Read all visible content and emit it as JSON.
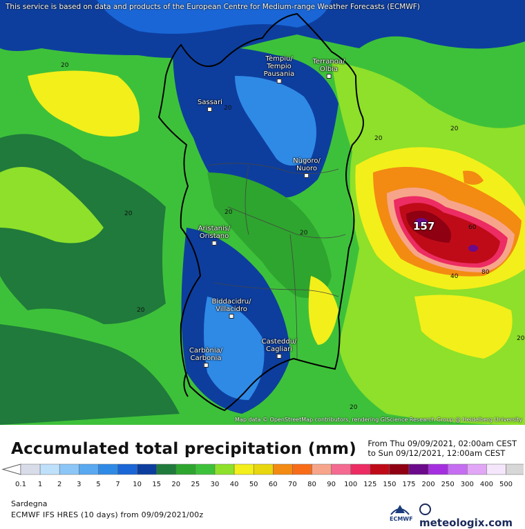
{
  "notice": "This service is based on data and products of the European Centre for Medium-range Weather Forecasts (ECMWF)",
  "attribution": "Map data © OpenStreetMap contributors, rendering GIScience Research Group @ Heidelberg University",
  "cities": [
    {
      "id": "tempio",
      "label": "Tèmpiu/\nTempio\nPausania"
    },
    {
      "id": "olbia",
      "label": "Terranoa/\nOlbia"
    },
    {
      "id": "sassari",
      "label": "Sassari"
    },
    {
      "id": "nuoro",
      "label": "Nùgoro/\nNuoro"
    },
    {
      "id": "oristano",
      "label": "Aristanis/\nOristano"
    },
    {
      "id": "villacidro",
      "label": "Biddacidru/\nVillacidro"
    },
    {
      "id": "cagliari",
      "label": "Casteddu/\nCagliari"
    },
    {
      "id": "carbonia",
      "label": "Carbònia/\nCarbonia"
    }
  ],
  "contour_labels": [
    "20",
    "20",
    "20",
    "20",
    "20",
    "20",
    "20",
    "20",
    "20",
    "40",
    "60",
    "80",
    "20"
  ],
  "max_value": "157",
  "title": "Accumulated total precipitation (mm)",
  "period": {
    "from": "From Thu 09/09/2021, 02:00am CEST",
    "to": "to Sun 09/12/2021, 12:00am CEST"
  },
  "legend": {
    "ticks": [
      "0.1",
      "1",
      "2",
      "3",
      "5",
      "7",
      "10",
      "15",
      "20",
      "25",
      "30",
      "40",
      "50",
      "60",
      "70",
      "80",
      "90",
      "100",
      "125",
      "150",
      "175",
      "200",
      "250",
      "300",
      "400",
      "500"
    ],
    "colors": [
      "#d8dbe8",
      "#bfe0fb",
      "#8cc6f7",
      "#5aa8f0",
      "#2f8ae6",
      "#1a66d6",
      "#0d3e9e",
      "#1f7a3b",
      "#2ea52e",
      "#3ec13a",
      "#8ee02a",
      "#f3ef1a",
      "#e8d60e",
      "#f38a12",
      "#f86c18",
      "#f7a58a",
      "#f46a90",
      "#ec2c62",
      "#bf0b18",
      "#8e0012",
      "#6b0a8a",
      "#a52fe0",
      "#c66ef1",
      "#e2a6f6",
      "#f5e6fb",
      "#d7d7d7"
    ]
  },
  "region": "Sardegna",
  "model": "ECMWF IFS HRES (10 days) from 09/09/2021/00z",
  "logos": {
    "ecmwf": "ECMWF",
    "brand": "meteologix.com"
  }
}
